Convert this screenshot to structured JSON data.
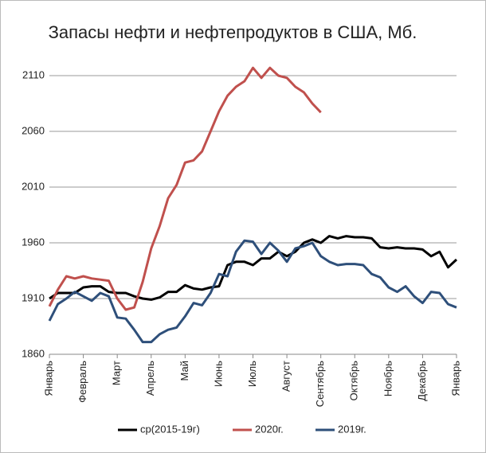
{
  "chart_data": {
    "type": "line",
    "title": "Запасы нефти и нефтепродуктов в США, Мб.",
    "categories": [
      "Январь",
      null,
      null,
      null,
      "Февраль",
      null,
      null,
      null,
      "Март",
      null,
      null,
      null,
      "Апрель",
      null,
      null,
      null,
      "Май",
      null,
      null,
      null,
      "Июнь",
      null,
      null,
      null,
      "Июль",
      null,
      null,
      null,
      "Август",
      null,
      null,
      null,
      "Сентябрь",
      null,
      null,
      null,
      "Октябрь",
      null,
      null,
      null,
      "Ноябрь",
      null,
      null,
      null,
      "Декабрь",
      null,
      null,
      null,
      "Январь"
    ],
    "series": [
      {
        "name": "ср(2015-19г)",
        "color": "#000000",
        "values": [
          1910,
          1915,
          1915,
          1915,
          1920,
          1921,
          1921,
          1916,
          1915,
          1915,
          1912,
          1910,
          1909,
          1911,
          1916,
          1916,
          1922,
          1919,
          1918,
          1920,
          1921,
          1940,
          1943,
          1943,
          1940,
          1946,
          1946,
          1952,
          1948,
          1952,
          1960,
          1963,
          1960,
          1966,
          1964,
          1966,
          1965,
          1965,
          1964,
          1956,
          1955,
          1956,
          1955,
          1955,
          1954,
          1948,
          1952,
          1938,
          1945
        ]
      },
      {
        "name": "2020г.",
        "color": "#c0504d",
        "values": [
          1903,
          1918,
          1930,
          1928,
          1930,
          1928,
          1927,
          1926,
          1910,
          1900,
          1902,
          1925,
          1955,
          1975,
          2000,
          2012,
          2032,
          2034,
          2042,
          2060,
          2078,
          2092,
          2100,
          2105,
          2117,
          2108,
          2117,
          2110,
          2108,
          2100,
          2095,
          2085,
          2077,
          null,
          null,
          null,
          null,
          null,
          null,
          null,
          null,
          null,
          null,
          null,
          null,
          null,
          null,
          null,
          null
        ]
      },
      {
        "name": "2019г.",
        "color": "#2e4f7a",
        "values": [
          1890,
          1905,
          1910,
          1916,
          1912,
          1908,
          1915,
          1912,
          1893,
          1892,
          1882,
          1871,
          1871,
          1878,
          1882,
          1884,
          1894,
          1906,
          1904,
          1915,
          1932,
          1930,
          1952,
          1962,
          1961,
          1950,
          1960,
          1953,
          1943,
          1955,
          1957,
          1960,
          1948,
          1943,
          1940,
          1941,
          1941,
          1940,
          1932,
          1929,
          1920,
          1916,
          1921,
          1912,
          1906,
          1916,
          1915,
          1905,
          1902
        ]
      }
    ],
    "ylim": [
      1860,
      2120
    ],
    "yticks": [
      1860,
      1910,
      1960,
      2010,
      2060,
      2110
    ],
    "grid": true,
    "legend": "bottom"
  }
}
